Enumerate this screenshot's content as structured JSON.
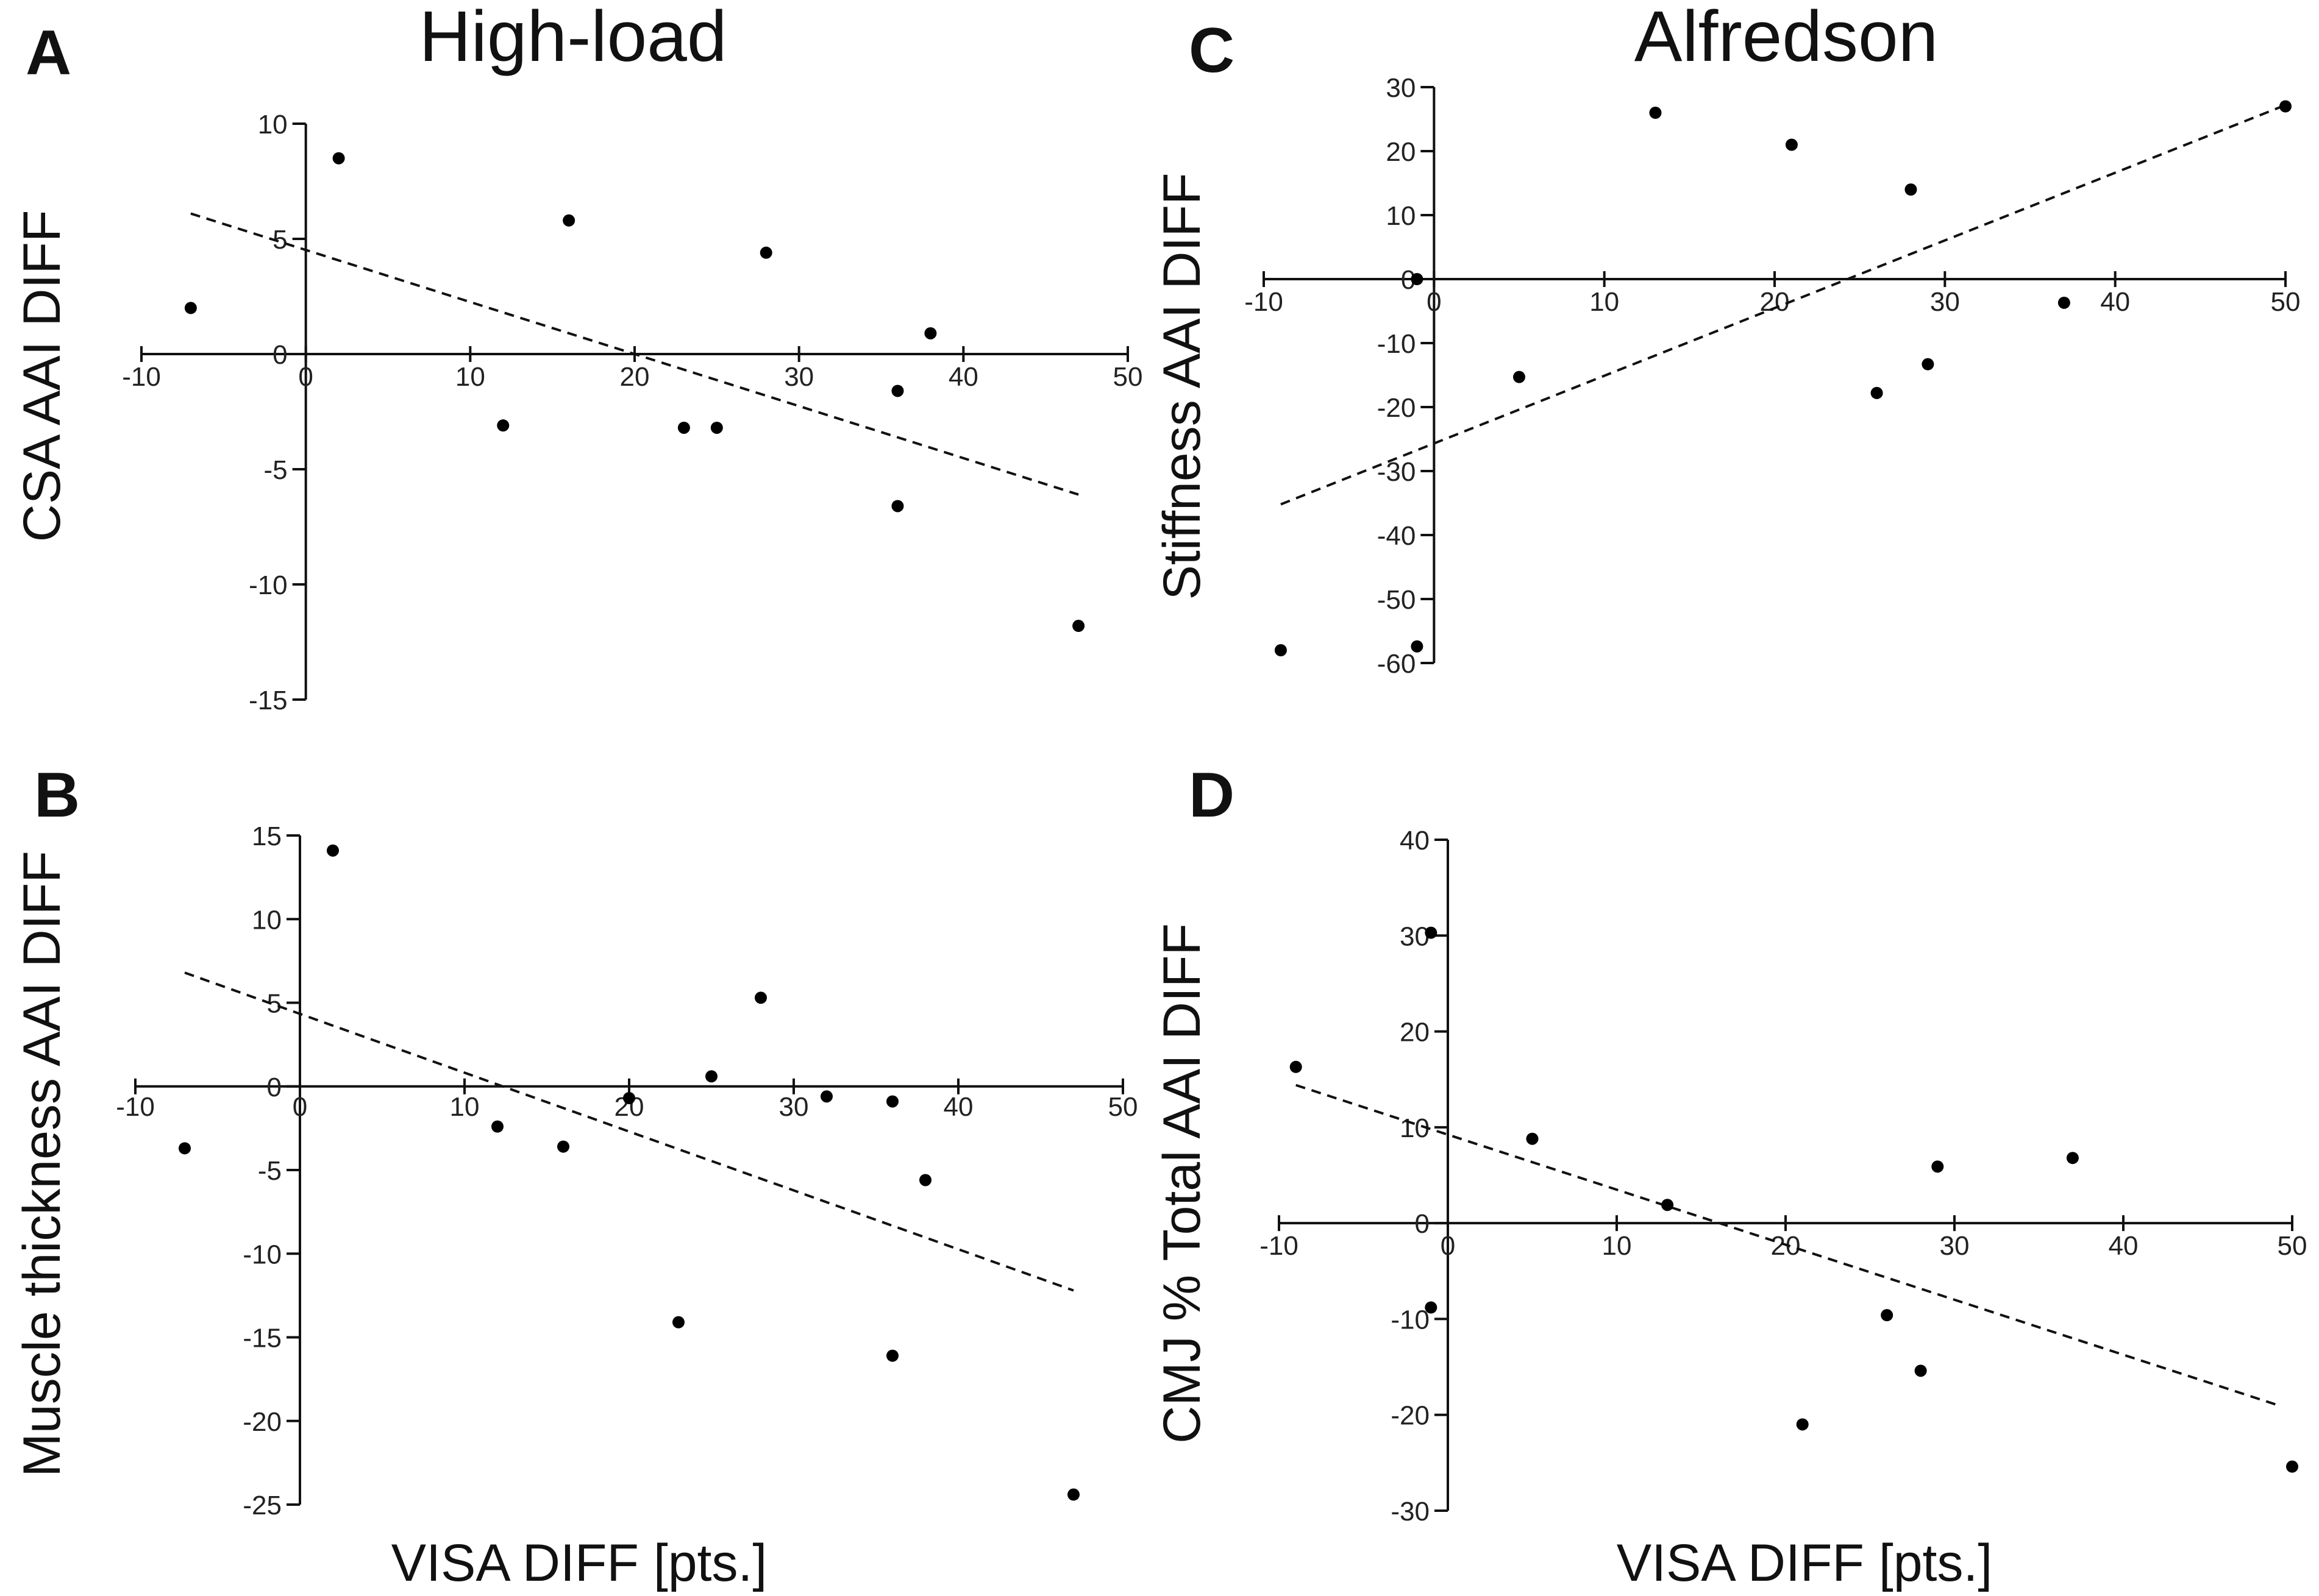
{
  "titles": {
    "left": "High-load",
    "right": "Alfredson"
  },
  "chart_data": [
    {
      "panel": "A",
      "type": "scatter",
      "ylabel": "CSA  AAI DIFF",
      "xlabel": "",
      "xlim": [
        -10,
        50
      ],
      "ylim": [
        -15,
        10
      ],
      "xticks": [
        -10,
        0,
        10,
        20,
        30,
        40,
        50
      ],
      "yticks": [
        10,
        5,
        0,
        -5,
        -10,
        -15
      ],
      "points": [
        [
          -7,
          2
        ],
        [
          2,
          8.5
        ],
        [
          12,
          -3.1
        ],
        [
          16,
          5.8
        ],
        [
          23,
          -3.2
        ],
        [
          25,
          -3.2
        ],
        [
          28,
          4.4
        ],
        [
          36,
          -1.6
        ],
        [
          36,
          -6.6
        ],
        [
          38,
          0.9
        ],
        [
          47,
          -11.8
        ]
      ],
      "trend": [
        [
          -7,
          6.1
        ],
        [
          47,
          -6.1
        ]
      ]
    },
    {
      "panel": "B",
      "type": "scatter",
      "ylabel": "Muscle thickness AAI DIFF",
      "xlabel": "VISA DIFF [pts.]",
      "xlim": [
        -10,
        50
      ],
      "ylim": [
        -25,
        15
      ],
      "xticks": [
        -10,
        0,
        10,
        20,
        30,
        40,
        50
      ],
      "yticks": [
        15,
        10,
        5,
        0,
        -5,
        -10,
        -15,
        -20,
        -25
      ],
      "points": [
        [
          -7,
          -3.7
        ],
        [
          2,
          14.1
        ],
        [
          12,
          -2.4
        ],
        [
          16,
          -3.6
        ],
        [
          20,
          -0.7
        ],
        [
          23,
          -14.1
        ],
        [
          25,
          0.6
        ],
        [
          28,
          5.3
        ],
        [
          32,
          -0.6
        ],
        [
          36,
          -0.9
        ],
        [
          36,
          -16.1
        ],
        [
          38,
          -5.6
        ],
        [
          47,
          -24.4
        ]
      ],
      "trend": [
        [
          -7,
          6.8
        ],
        [
          47,
          -12.2
        ]
      ]
    },
    {
      "panel": "C",
      "type": "scatter",
      "ylabel": "Stiffness  AAI DIFF",
      "xlabel": "",
      "xlim": [
        -10,
        50
      ],
      "ylim": [
        -60,
        30
      ],
      "xticks": [
        -10,
        0,
        10,
        20,
        30,
        40,
        50
      ],
      "yticks": [
        30,
        20,
        10,
        0,
        -10,
        -20,
        -30,
        -40,
        -50,
        -60
      ],
      "points": [
        [
          -9,
          -58
        ],
        [
          -1,
          0
        ],
        [
          -1,
          -57.4
        ],
        [
          5,
          -15.3
        ],
        [
          13,
          26
        ],
        [
          21,
          21
        ],
        [
          26,
          -17.8
        ],
        [
          28,
          14
        ],
        [
          29,
          -13.3
        ],
        [
          37,
          -3.7
        ],
        [
          50,
          27
        ]
      ],
      "trend": [
        [
          -9,
          -35.2
        ],
        [
          50,
          27.2
        ]
      ]
    },
    {
      "panel": "D",
      "type": "scatter",
      "ylabel": "CMJ % Total AAI DIFF",
      "xlabel": "VISA DIFF [pts.]",
      "xlim": [
        -10,
        50
      ],
      "ylim": [
        -30,
        40
      ],
      "xticks": [
        -10,
        0,
        10,
        20,
        30,
        40,
        50
      ],
      "yticks": [
        40,
        30,
        20,
        10,
        0,
        -10,
        -20,
        -30
      ],
      "points": [
        [
          -9,
          16.3
        ],
        [
          -1,
          30.3
        ],
        [
          -1,
          -8.8
        ],
        [
          5,
          8.8
        ],
        [
          13,
          1.9
        ],
        [
          21,
          -21
        ],
        [
          26,
          -9.6
        ],
        [
          28,
          -15.4
        ],
        [
          29,
          5.9
        ],
        [
          37,
          6.8
        ],
        [
          50,
          -25.4
        ]
      ],
      "trend": [
        [
          -9,
          14.4
        ],
        [
          49,
          -18.9
        ]
      ]
    }
  ]
}
